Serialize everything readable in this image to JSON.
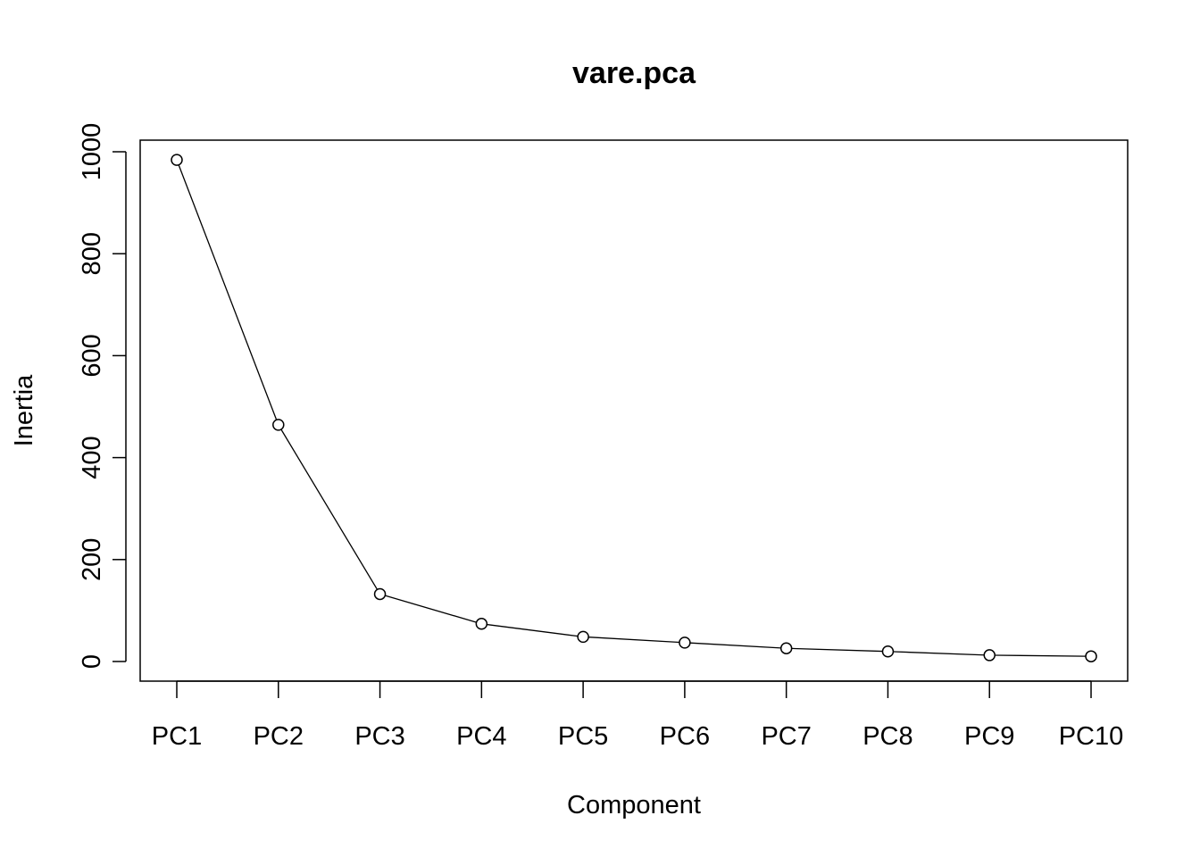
{
  "chart_data": {
    "type": "line",
    "title": "vare.pca",
    "xlabel": "Component",
    "ylabel": "Inertia",
    "categories": [
      "PC1",
      "PC2",
      "PC3",
      "PC4",
      "PC5",
      "PC6",
      "PC7",
      "PC8",
      "PC9",
      "PC10"
    ],
    "values": [
      983.99,
      464.34,
      132.28,
      73.93,
      48.42,
      37.0,
      25.88,
      19.7,
      12.37,
      10.15
    ],
    "yticks": [
      0,
      200,
      400,
      600,
      800,
      1000
    ],
    "ytick_labels": [
      "0",
      "200",
      "400",
      "600",
      "800",
      "1000"
    ],
    "grid": false,
    "marker": "open-circle",
    "color": "#000000"
  }
}
